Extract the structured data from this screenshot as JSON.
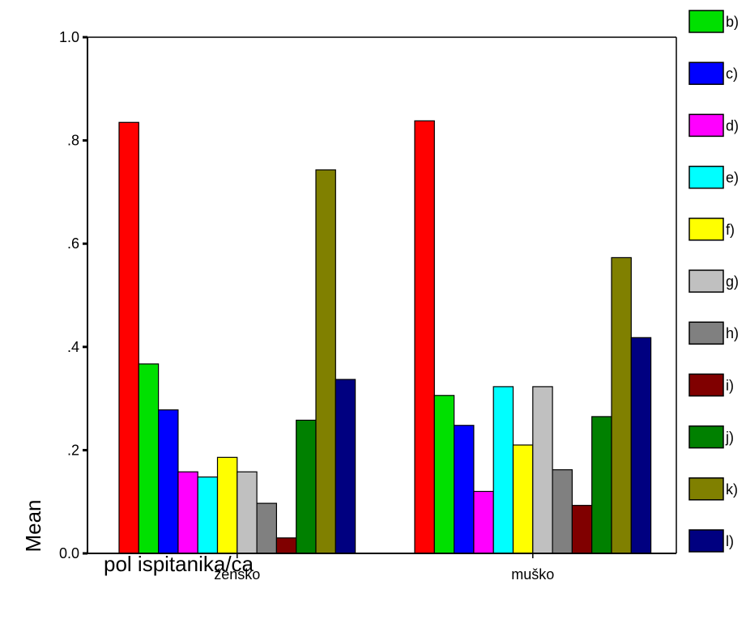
{
  "chart_data": {
    "type": "bar",
    "xlabel": "pol ispitanika/ca",
    "ylabel": "Mean",
    "ylim": [
      0,
      1.0
    ],
    "yticks": [
      {
        "value": 0.0,
        "label": "0.0"
      },
      {
        "value": 0.2,
        "label": ".2"
      },
      {
        "value": 0.4,
        "label": ".4"
      },
      {
        "value": 0.6,
        "label": ".6"
      },
      {
        "value": 0.8,
        "label": ".8"
      },
      {
        "value": 1.0,
        "label": "1.0"
      }
    ],
    "categories": [
      "žensko",
      "muško"
    ],
    "legend_position": "right",
    "series": [
      {
        "name": "",
        "color": "#ff0000",
        "values": [
          0.835,
          0.838
        ]
      },
      {
        "name": "b)",
        "color": "#00e000",
        "values": [
          0.367,
          0.306
        ]
      },
      {
        "name": "c)",
        "color": "#0000ff",
        "values": [
          0.278,
          0.248
        ]
      },
      {
        "name": "d)",
        "color": "#ff00ff",
        "values": [
          0.158,
          0.12
        ]
      },
      {
        "name": "e)",
        "color": "#00ffff",
        "values": [
          0.148,
          0.323
        ]
      },
      {
        "name": "f)",
        "color": "#ffff00",
        "values": [
          0.186,
          0.21
        ]
      },
      {
        "name": "g)",
        "color": "#c0c0c0",
        "values": [
          0.158,
          0.323
        ]
      },
      {
        "name": "h)",
        "color": "#808080",
        "values": [
          0.097,
          0.162
        ]
      },
      {
        "name": "i)",
        "color": "#800000",
        "values": [
          0.03,
          0.093
        ]
      },
      {
        "name": "j)",
        "color": "#008000",
        "values": [
          0.258,
          0.265
        ]
      },
      {
        "name": "k)",
        "color": "#808000",
        "values": [
          0.743,
          0.573
        ]
      },
      {
        "name": "l)",
        "color": "#000080",
        "values": [
          0.337,
          0.418
        ]
      }
    ]
  }
}
